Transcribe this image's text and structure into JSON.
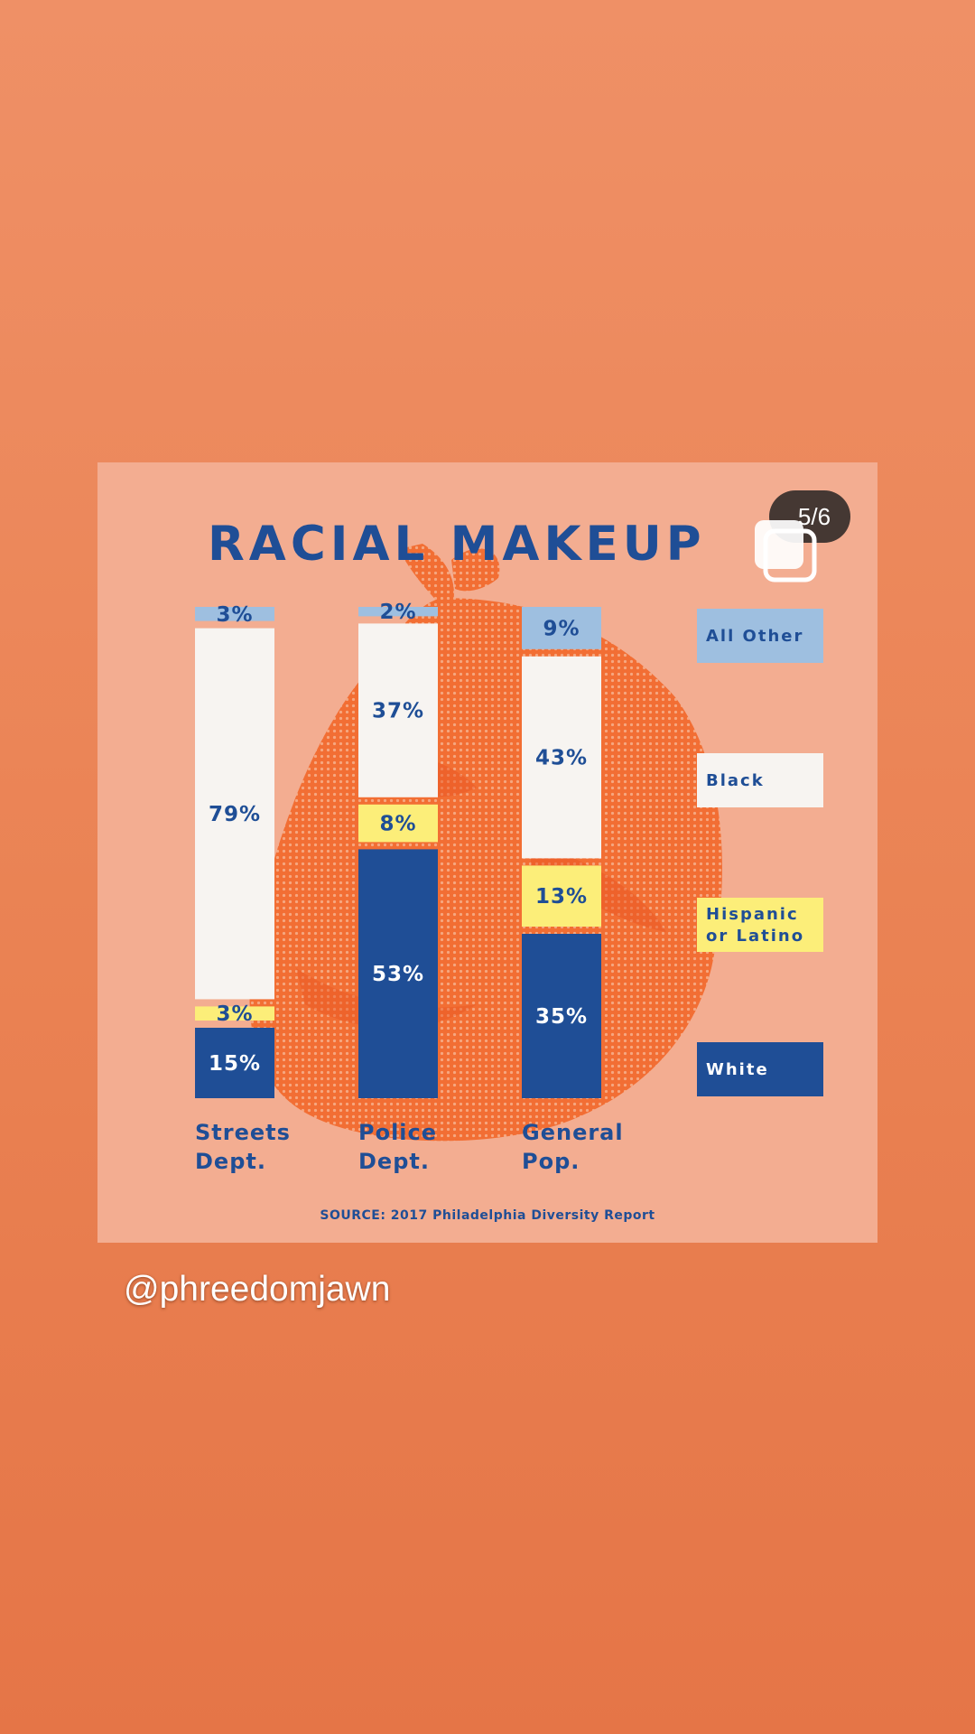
{
  "story": {
    "username": "@phreedomjawn",
    "carousel_counter": "5/6"
  },
  "post": {
    "title": "RACIAL MAKEUP",
    "source": "SOURCE: 2017 Philadelphia Diversity Report"
  },
  "colors": {
    "background": "#ea8253",
    "card": "#f3ad91",
    "white_segment": "#1f4e96",
    "black_segment": "#f7f4f1",
    "hispanic_segment": "#fcee79",
    "other_segment": "#9ebfe0",
    "text_blue": "#1f4e96"
  },
  "chart_data": {
    "type": "bar",
    "stacked": true,
    "title": "RACIAL MAKEUP",
    "categories": [
      "Streets Dept.",
      "Police Dept.",
      "General Pop."
    ],
    "series": [
      {
        "name": "White",
        "values": [
          15,
          53,
          35
        ],
        "labels": [
          "15%",
          "53%",
          "35%"
        ],
        "color": "#1f4e96"
      },
      {
        "name": "Hispanic or Latino",
        "values": [
          3,
          8,
          13
        ],
        "labels": [
          "3%",
          "8%",
          "13%"
        ],
        "color": "#fcee79"
      },
      {
        "name": "Black",
        "values": [
          79,
          37,
          43
        ],
        "labels": [
          "79%",
          "37%",
          "43%"
        ],
        "color": "#f7f4f1"
      },
      {
        "name": "All Other",
        "values": [
          3,
          2,
          9
        ],
        "labels": [
          "3%",
          "2%",
          "9%"
        ],
        "color": "#9ebfe0"
      }
    ],
    "legend": [
      {
        "label": "All Other",
        "color": "#9ebfe0"
      },
      {
        "label": "Black",
        "color": "#f7f4f1"
      },
      {
        "label": "Hispanic or Latino",
        "color": "#fcee79"
      },
      {
        "label": "White",
        "color": "#1f4e96"
      }
    ],
    "legend_position": "right",
    "ylim": [
      0,
      100
    ],
    "grid": false,
    "source": "SOURCE: 2017 Philadelphia Diversity Report"
  }
}
